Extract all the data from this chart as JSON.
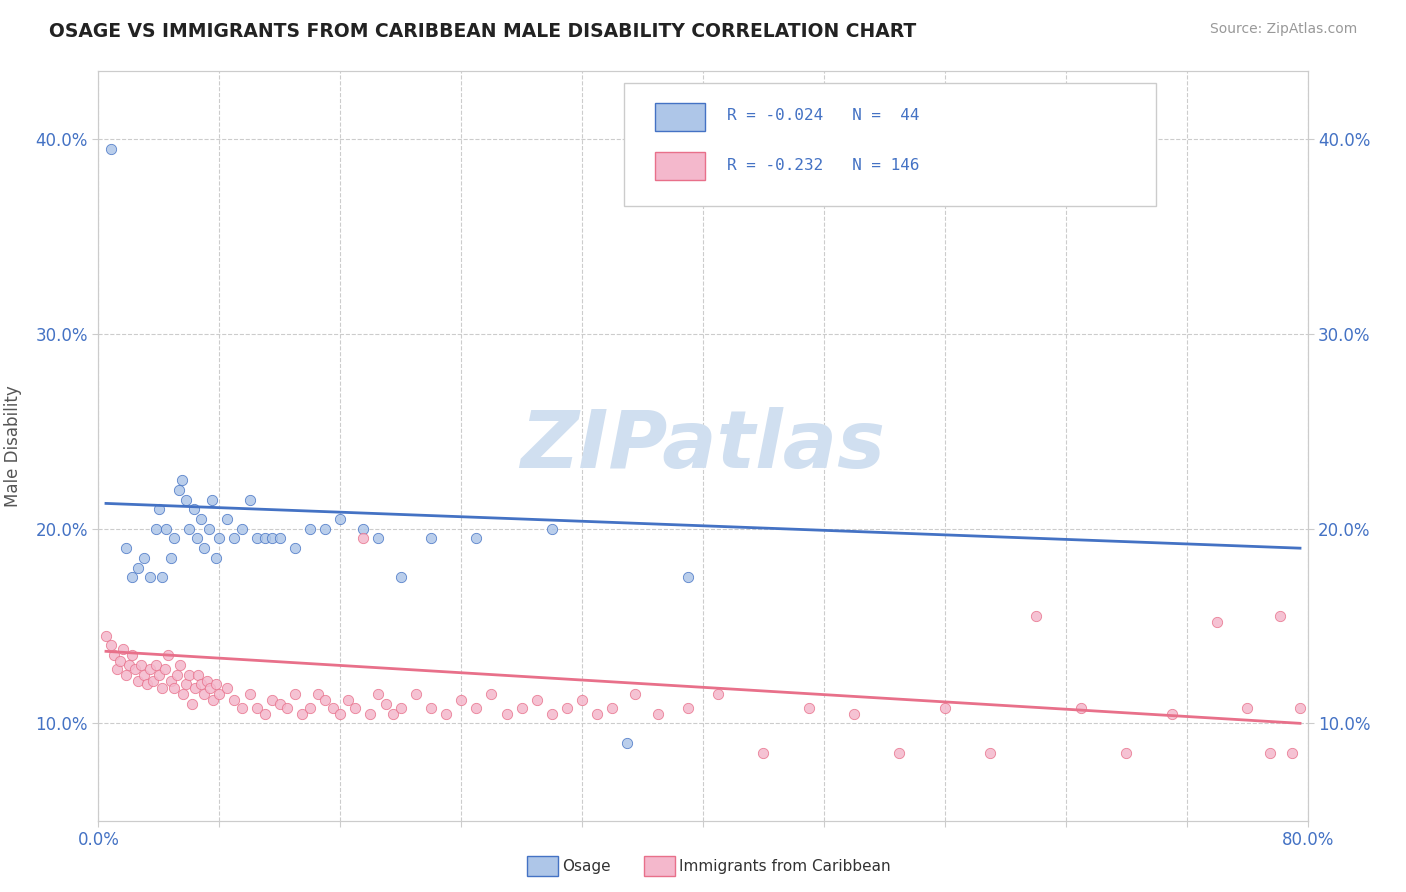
{
  "title": "OSAGE VS IMMIGRANTS FROM CARIBBEAN MALE DISABILITY CORRELATION CHART",
  "source": "Source: ZipAtlas.com",
  "ylabel": "Male Disability",
  "xlim": [
    0.0,
    0.8
  ],
  "ylim": [
    0.05,
    0.435
  ],
  "yticks": [
    0.1,
    0.2,
    0.3,
    0.4
  ],
  "ytick_labels": [
    "10.0%",
    "20.0%",
    "30.0%",
    "40.0%"
  ],
  "xticks": [
    0.0,
    0.08,
    0.16,
    0.24,
    0.32,
    0.4,
    0.48,
    0.56,
    0.64,
    0.72,
    0.8
  ],
  "xtick_labels": [
    "0.0%",
    "",
    "",
    "",
    "",
    "",
    "",
    "",
    "",
    "",
    "80.0%"
  ],
  "color_osage": "#aec6e8",
  "color_caribbean": "#f4b8cc",
  "color_line_osage": "#4472c4",
  "color_line_caribbean": "#e8708a",
  "watermark_color": "#d0dff0",
  "osage_scatter_x": [
    0.008,
    0.018,
    0.022,
    0.026,
    0.03,
    0.034,
    0.038,
    0.04,
    0.042,
    0.045,
    0.048,
    0.05,
    0.053,
    0.055,
    0.058,
    0.06,
    0.063,
    0.065,
    0.068,
    0.07,
    0.073,
    0.075,
    0.078,
    0.08,
    0.085,
    0.09,
    0.095,
    0.1,
    0.105,
    0.11,
    0.115,
    0.12,
    0.13,
    0.14,
    0.15,
    0.16,
    0.175,
    0.185,
    0.2,
    0.22,
    0.25,
    0.3,
    0.35,
    0.39
  ],
  "osage_scatter_y": [
    0.395,
    0.19,
    0.175,
    0.18,
    0.185,
    0.175,
    0.2,
    0.21,
    0.175,
    0.2,
    0.185,
    0.195,
    0.22,
    0.225,
    0.215,
    0.2,
    0.21,
    0.195,
    0.205,
    0.19,
    0.2,
    0.215,
    0.185,
    0.195,
    0.205,
    0.195,
    0.2,
    0.215,
    0.195,
    0.195,
    0.195,
    0.195,
    0.19,
    0.2,
    0.2,
    0.205,
    0.2,
    0.195,
    0.175,
    0.195,
    0.195,
    0.2,
    0.09,
    0.175
  ],
  "carib_scatter_x": [
    0.005,
    0.008,
    0.01,
    0.012,
    0.014,
    0.016,
    0.018,
    0.02,
    0.022,
    0.024,
    0.026,
    0.028,
    0.03,
    0.032,
    0.034,
    0.036,
    0.038,
    0.04,
    0.042,
    0.044,
    0.046,
    0.048,
    0.05,
    0.052,
    0.054,
    0.056,
    0.058,
    0.06,
    0.062,
    0.064,
    0.066,
    0.068,
    0.07,
    0.072,
    0.074,
    0.076,
    0.078,
    0.08,
    0.085,
    0.09,
    0.095,
    0.1,
    0.105,
    0.11,
    0.115,
    0.12,
    0.125,
    0.13,
    0.135,
    0.14,
    0.145,
    0.15,
    0.155,
    0.16,
    0.165,
    0.17,
    0.175,
    0.18,
    0.185,
    0.19,
    0.195,
    0.2,
    0.21,
    0.22,
    0.23,
    0.24,
    0.25,
    0.26,
    0.27,
    0.28,
    0.29,
    0.3,
    0.31,
    0.32,
    0.33,
    0.34,
    0.355,
    0.37,
    0.39,
    0.41,
    0.44,
    0.47,
    0.5,
    0.53,
    0.56,
    0.59,
    0.62,
    0.65,
    0.68,
    0.71,
    0.74,
    0.76,
    0.775,
    0.782,
    0.79,
    0.795
  ],
  "carib_scatter_y": [
    0.145,
    0.14,
    0.135,
    0.128,
    0.132,
    0.138,
    0.125,
    0.13,
    0.135,
    0.128,
    0.122,
    0.13,
    0.125,
    0.12,
    0.128,
    0.122,
    0.13,
    0.125,
    0.118,
    0.128,
    0.135,
    0.122,
    0.118,
    0.125,
    0.13,
    0.115,
    0.12,
    0.125,
    0.11,
    0.118,
    0.125,
    0.12,
    0.115,
    0.122,
    0.118,
    0.112,
    0.12,
    0.115,
    0.118,
    0.112,
    0.108,
    0.115,
    0.108,
    0.105,
    0.112,
    0.11,
    0.108,
    0.115,
    0.105,
    0.108,
    0.115,
    0.112,
    0.108,
    0.105,
    0.112,
    0.108,
    0.195,
    0.105,
    0.115,
    0.11,
    0.105,
    0.108,
    0.115,
    0.108,
    0.105,
    0.112,
    0.108,
    0.115,
    0.105,
    0.108,
    0.112,
    0.105,
    0.108,
    0.112,
    0.105,
    0.108,
    0.115,
    0.105,
    0.108,
    0.115,
    0.085,
    0.108,
    0.105,
    0.085,
    0.108,
    0.085,
    0.155,
    0.108,
    0.085,
    0.105,
    0.152,
    0.108,
    0.085,
    0.155,
    0.085,
    0.108
  ],
  "osage_line_x": [
    0.005,
    0.795
  ],
  "osage_line_y": [
    0.213,
    0.19
  ],
  "carib_line_x": [
    0.005,
    0.795
  ],
  "carib_line_y": [
    0.137,
    0.1
  ]
}
